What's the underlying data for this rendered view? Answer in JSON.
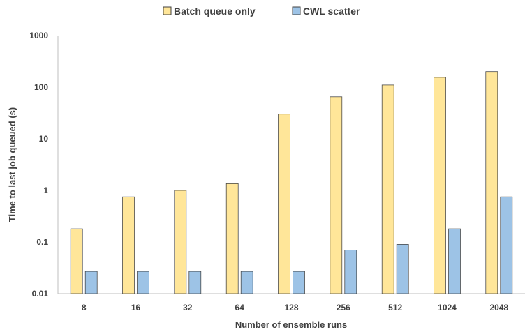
{
  "chart_data": {
    "type": "bar",
    "title": "",
    "xlabel": "Number of ensemble runs",
    "ylabel": "Time to last job queued (s)",
    "yscale": "log",
    "ylim": [
      0.01,
      1000
    ],
    "yticks": [
      0.01,
      0.1,
      1,
      10,
      100,
      1000
    ],
    "ytick_labels": [
      "0.01",
      "0.1",
      "1",
      "10",
      "100",
      "1000"
    ],
    "categories": [
      "8",
      "16",
      "32",
      "64",
      "128",
      "256",
      "512",
      "1024",
      "2048"
    ],
    "series": [
      {
        "name": "Batch queue only",
        "color": "#FFE699",
        "values": [
          0.18,
          0.75,
          1.0,
          1.35,
          30,
          65,
          110,
          155,
          200
        ]
      },
      {
        "name": "CWL scatter",
        "color": "#9DC3E6",
        "values": [
          0.027,
          0.027,
          0.027,
          0.027,
          0.027,
          0.07,
          0.09,
          0.18,
          0.75
        ]
      }
    ],
    "grid": false,
    "legend_position": "top-center"
  }
}
